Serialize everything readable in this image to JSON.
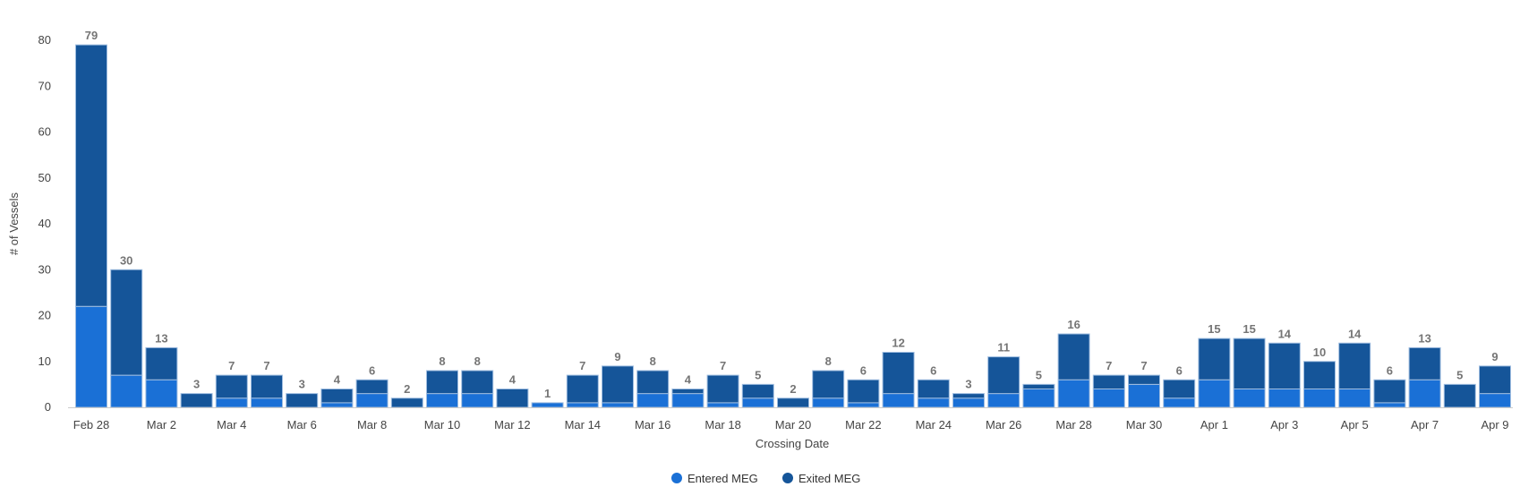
{
  "chart_data": {
    "type": "bar",
    "stacked": true,
    "title": "",
    "xlabel": "Crossing Date",
    "ylabel": "# of Vessels",
    "ylim": [
      0,
      80
    ],
    "yticks": [
      0,
      10,
      20,
      30,
      40,
      50,
      60,
      70,
      80
    ],
    "grid": false,
    "legend_position": "bottom-center",
    "categories": [
      "Feb 28",
      "Mar 1",
      "Mar 2",
      "Mar 3",
      "Mar 4",
      "Mar 5",
      "Mar 6",
      "Mar 7",
      "Mar 8",
      "Mar 9",
      "Mar 10",
      "Mar 11",
      "Mar 12",
      "Mar 13",
      "Mar 14",
      "Mar 15",
      "Mar 16",
      "Mar 17",
      "Mar 18",
      "Mar 19",
      "Mar 20",
      "Mar 21",
      "Mar 22",
      "Mar 23",
      "Mar 24",
      "Mar 25",
      "Mar 26",
      "Mar 27",
      "Mar 28",
      "Mar 29",
      "Mar 30",
      "Mar 31",
      "Apr 1",
      "Apr 2",
      "Apr 3",
      "Apr 4",
      "Apr 5",
      "Apr 6",
      "Apr 7",
      "Apr 8",
      "Apr 9"
    ],
    "tick_labels": [
      "Feb 28",
      "",
      "Mar 2",
      "",
      "Mar 4",
      "",
      "Mar 6",
      "",
      "Mar 8",
      "",
      "Mar 10",
      "",
      "Mar 12",
      "",
      "Mar 14",
      "",
      "Mar 16",
      "",
      "Mar 18",
      "",
      "Mar 20",
      "",
      "Mar 22",
      "",
      "Mar 24",
      "",
      "Mar 26",
      "",
      "Mar 28",
      "",
      "Mar 30",
      "",
      "Apr 1",
      "",
      "Apr 3",
      "",
      "Apr 5",
      "",
      "Apr 7",
      "",
      "Apr 9"
    ],
    "totals": [
      79,
      30,
      13,
      3,
      7,
      7,
      3,
      4,
      6,
      2,
      8,
      8,
      4,
      1,
      7,
      9,
      8,
      4,
      7,
      5,
      2,
      8,
      6,
      12,
      6,
      3,
      11,
      5,
      16,
      7,
      7,
      6,
      15,
      15,
      14,
      10,
      14,
      6,
      13,
      5,
      9
    ],
    "series": [
      {
        "name": "Entered MEG",
        "color": "#1a70d6",
        "values": [
          22,
          7,
          6,
          0,
          2,
          2,
          0,
          1,
          3,
          0,
          3,
          3,
          0,
          1,
          1,
          1,
          3,
          3,
          1,
          2,
          0,
          2,
          1,
          3,
          2,
          2,
          3,
          4,
          6,
          4,
          5,
          2,
          6,
          4,
          4,
          4,
          4,
          1,
          6,
          0,
          3
        ]
      },
      {
        "name": "Exited MEG",
        "color": "#155599",
        "values": [
          57,
          23,
          7,
          3,
          5,
          5,
          3,
          3,
          3,
          2,
          5,
          5,
          4,
          0,
          6,
          8,
          5,
          1,
          6,
          3,
          2,
          6,
          5,
          9,
          4,
          1,
          8,
          1,
          10,
          3,
          2,
          4,
          9,
          11,
          10,
          6,
          10,
          5,
          7,
          5,
          6
        ]
      }
    ]
  }
}
